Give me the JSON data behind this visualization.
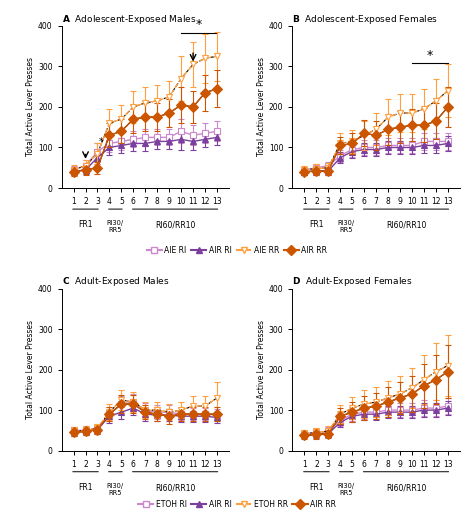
{
  "x": [
    1,
    2,
    3,
    4,
    5,
    6,
    7,
    8,
    9,
    10,
    11,
    12,
    13
  ],
  "panel_A": {
    "title": "Adolescent-Exposed Males",
    "title_letter": "A",
    "AIE_RI_mean": [
      45,
      55,
      90,
      110,
      115,
      120,
      125,
      125,
      125,
      140,
      130,
      135,
      140
    ],
    "AIE_RI_err": [
      10,
      15,
      20,
      20,
      20,
      20,
      20,
      20,
      20,
      30,
      25,
      25,
      25
    ],
    "AIR_RI_mean": [
      40,
      45,
      75,
      100,
      105,
      110,
      110,
      115,
      115,
      120,
      115,
      120,
      125
    ],
    "AIR_RI_err": [
      8,
      10,
      15,
      18,
      18,
      18,
      18,
      18,
      18,
      25,
      20,
      20,
      20
    ],
    "AIE_RR_mean": [
      45,
      55,
      85,
      160,
      170,
      200,
      210,
      215,
      225,
      270,
      305,
      320,
      325
    ],
    "AIE_RR_err": [
      12,
      15,
      25,
      35,
      35,
      40,
      40,
      40,
      40,
      55,
      55,
      60,
      60
    ],
    "AIR_RR_mean": [
      40,
      45,
      50,
      130,
      140,
      170,
      175,
      175,
      185,
      205,
      200,
      235,
      245
    ],
    "AIR_RR_err": [
      10,
      12,
      15,
      30,
      30,
      35,
      35,
      35,
      35,
      45,
      40,
      45,
      45
    ]
  },
  "panel_B": {
    "title": "Adolescent-Exposed Females",
    "title_letter": "B",
    "AIE_RI_mean": [
      45,
      50,
      55,
      80,
      95,
      100,
      100,
      105,
      105,
      105,
      115,
      115,
      115
    ],
    "AIE_RI_err": [
      8,
      10,
      10,
      15,
      18,
      18,
      18,
      18,
      18,
      18,
      20,
      20,
      20
    ],
    "AIR_RI_mean": [
      40,
      42,
      42,
      75,
      90,
      95,
      95,
      100,
      100,
      100,
      105,
      105,
      110
    ],
    "AIR_RI_err": [
      8,
      10,
      10,
      14,
      16,
      16,
      16,
      16,
      16,
      16,
      18,
      18,
      18
    ],
    "AIE_RR_mean": [
      45,
      48,
      50,
      110,
      115,
      130,
      145,
      175,
      185,
      185,
      195,
      215,
      240
    ],
    "AIE_RR_err": [
      10,
      12,
      12,
      25,
      28,
      35,
      40,
      45,
      48,
      48,
      50,
      55,
      65
    ],
    "AIR_RR_mean": [
      40,
      42,
      42,
      105,
      110,
      135,
      130,
      145,
      150,
      155,
      155,
      165,
      200
    ],
    "AIR_RR_err": [
      8,
      10,
      10,
      22,
      25,
      32,
      35,
      38,
      40,
      40,
      42,
      45,
      50
    ]
  },
  "panel_C": {
    "title": "Adult-Exposed Males",
    "title_letter": "C",
    "ETOH_RI_mean": [
      50,
      50,
      55,
      90,
      115,
      120,
      100,
      95,
      95,
      90,
      90,
      90,
      88
    ],
    "ETOH_RI_err": [
      8,
      10,
      10,
      18,
      20,
      20,
      18,
      18,
      18,
      15,
      15,
      15,
      15
    ],
    "AIR_RI_mean": [
      45,
      48,
      52,
      85,
      95,
      105,
      90,
      88,
      88,
      85,
      85,
      85,
      82
    ],
    "AIR_RI_err": [
      8,
      10,
      10,
      16,
      18,
      18,
      16,
      16,
      16,
      14,
      14,
      14,
      14
    ],
    "ETOH_RR_mean": [
      48,
      50,
      55,
      95,
      125,
      120,
      100,
      100,
      95,
      100,
      110,
      110,
      130
    ],
    "ETOH_RR_err": [
      10,
      12,
      12,
      20,
      25,
      25,
      20,
      20,
      20,
      20,
      25,
      25,
      40
    ],
    "AIR_RR_mean": [
      45,
      48,
      52,
      90,
      115,
      115,
      95,
      90,
      85,
      90,
      90,
      90,
      90
    ],
    "AIR_RR_err": [
      8,
      10,
      10,
      18,
      22,
      22,
      18,
      18,
      18,
      18,
      18,
      18,
      18
    ]
  },
  "panel_D": {
    "title": "Adult-Exposed Females",
    "title_letter": "D",
    "ETOH_RI_mean": [
      42,
      45,
      48,
      75,
      90,
      95,
      95,
      100,
      100,
      100,
      105,
      105,
      110
    ],
    "ETOH_RI_err": [
      8,
      10,
      10,
      15,
      18,
      18,
      18,
      18,
      18,
      18,
      20,
      20,
      20
    ],
    "AIR_RI_mean": [
      38,
      40,
      42,
      70,
      85,
      90,
      90,
      95,
      95,
      95,
      100,
      100,
      105
    ],
    "AIR_RI_err": [
      6,
      8,
      8,
      12,
      15,
      15,
      15,
      15,
      15,
      15,
      18,
      18,
      18
    ],
    "ETOH_RR_mean": [
      42,
      45,
      48,
      90,
      105,
      115,
      120,
      130,
      140,
      155,
      175,
      195,
      210
    ],
    "ETOH_RR_err": [
      10,
      12,
      12,
      22,
      28,
      35,
      38,
      42,
      45,
      50,
      60,
      70,
      75
    ],
    "AIR_RR_mean": [
      38,
      40,
      42,
      85,
      95,
      105,
      110,
      120,
      130,
      140,
      160,
      175,
      195
    ],
    "AIR_RR_err": [
      8,
      10,
      10,
      20,
      25,
      30,
      33,
      38,
      40,
      45,
      55,
      60,
      65
    ]
  },
  "colors": {
    "RI_light": "#CC88CC",
    "RI_dark": "#7B3F9E",
    "RR_light": "#FFA040",
    "RR_dark": "#CC5500"
  },
  "ylim": [
    0,
    400
  ],
  "yticks": [
    0,
    100,
    200,
    300,
    400
  ],
  "ylabel": "Total Active Lever Presses"
}
